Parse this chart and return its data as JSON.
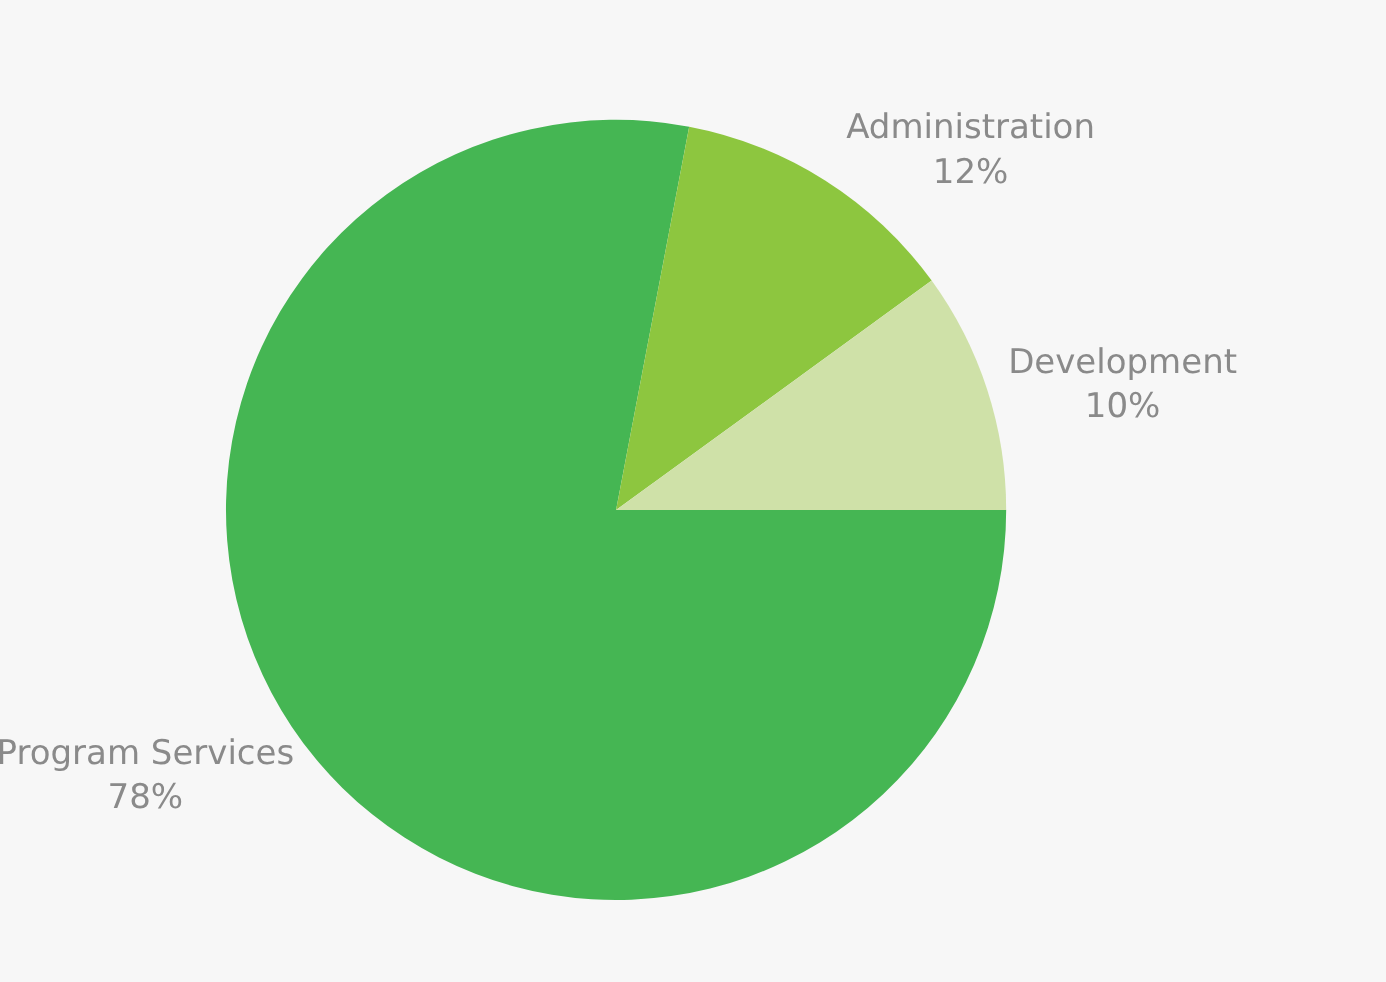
{
  "chart_data": {
    "type": "pie",
    "categories": [
      "Program Services",
      "Administration",
      "Development"
    ],
    "values": [
      78,
      12,
      10
    ],
    "value_labels": [
      "78%",
      "12%",
      "10%"
    ],
    "colors": [
      "#45b653",
      "#8dc63f",
      "#cfe1a8"
    ],
    "legend": false
  }
}
